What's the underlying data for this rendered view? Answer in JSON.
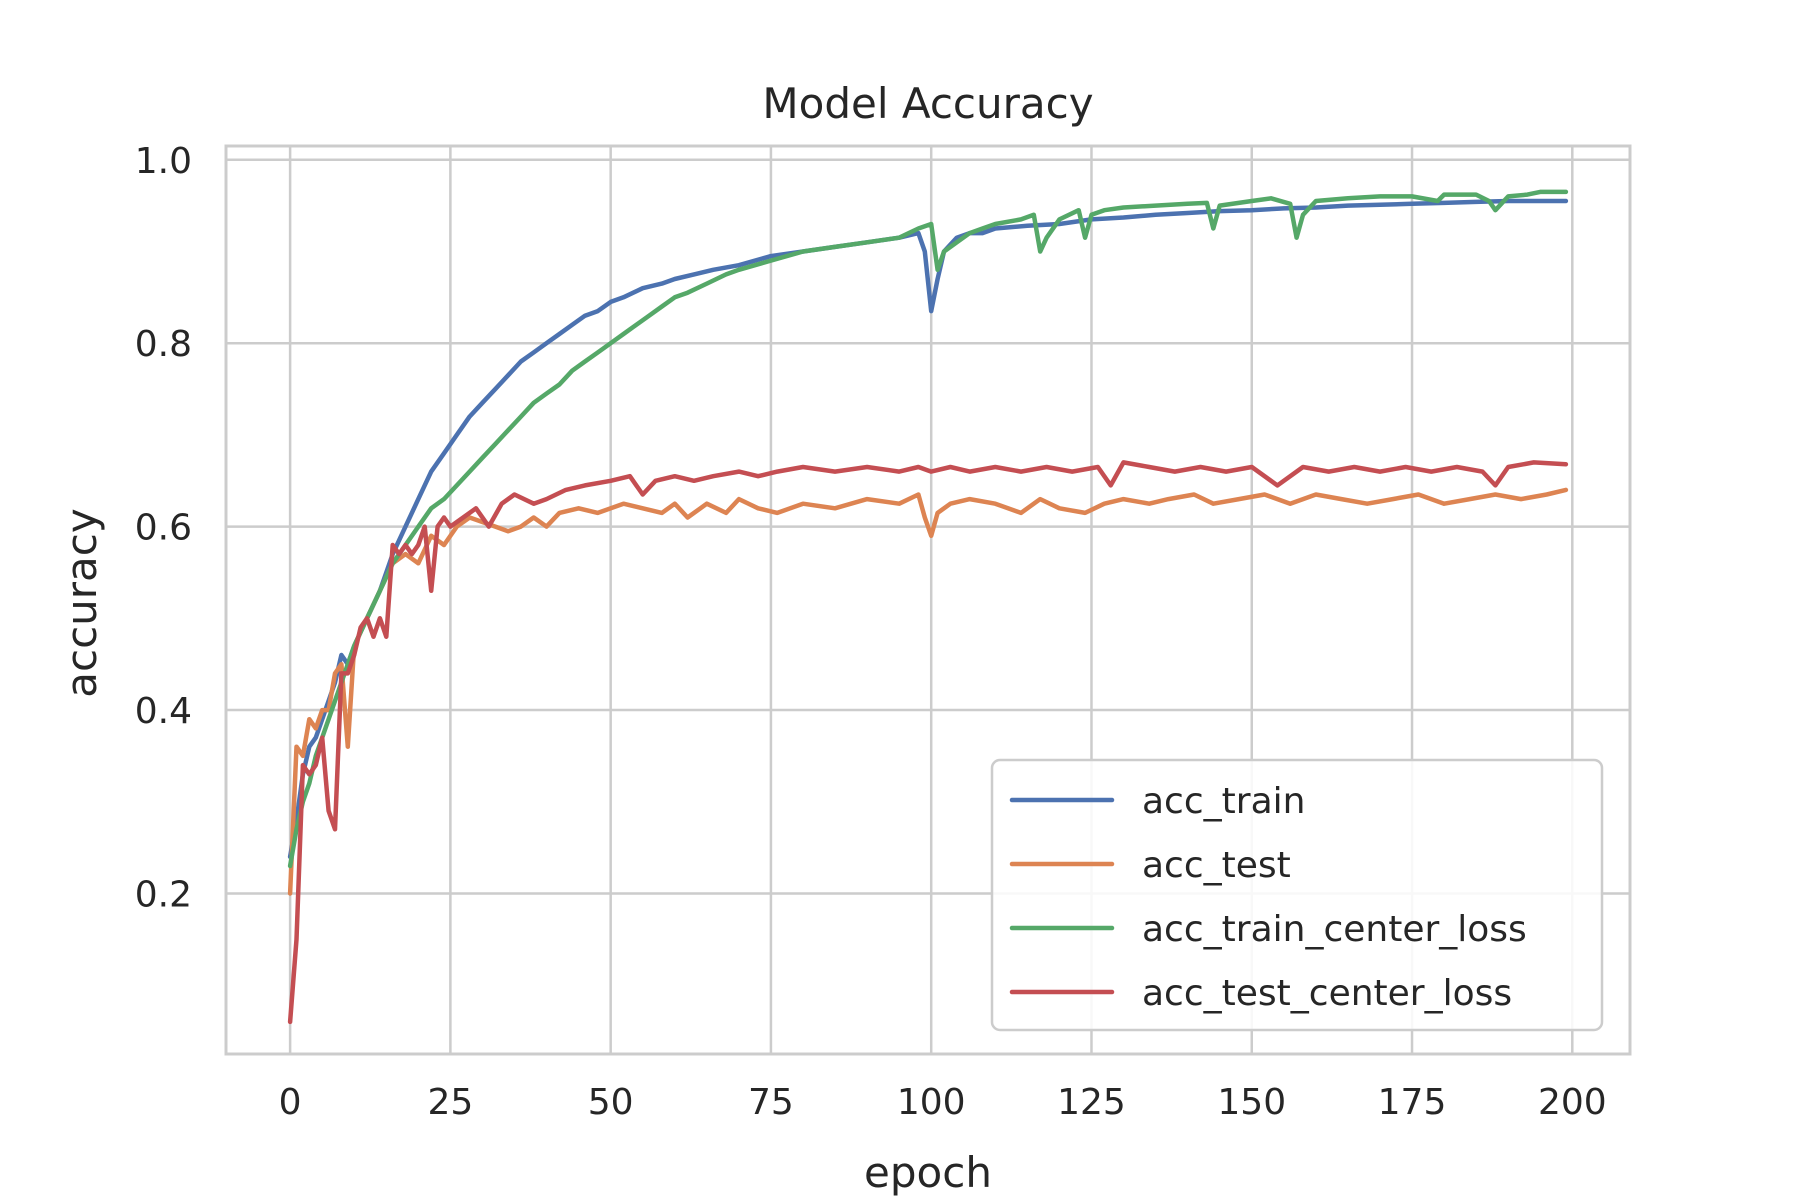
{
  "chart_data": {
    "type": "line",
    "title": "Model Accuracy",
    "xlabel": "epoch",
    "ylabel": "accuracy",
    "xlim": [
      -10,
      209
    ],
    "ylim": [
      0.025,
      1.015
    ],
    "xticks": [
      0,
      25,
      50,
      75,
      100,
      125,
      150,
      175,
      200
    ],
    "yticks": [
      0.2,
      0.4,
      0.6,
      0.8,
      1.0
    ],
    "ytick_labels": [
      "0.2",
      "0.4",
      "0.6",
      "0.8",
      "1.0"
    ],
    "grid": true,
    "legend_position": "lower-right",
    "series": [
      {
        "name": "acc_train",
        "color": "#4c72b0",
        "x": [
          0,
          1,
          2,
          3,
          4,
          5,
          6,
          7,
          8,
          9,
          10,
          12,
          14,
          16,
          18,
          20,
          22,
          24,
          26,
          28,
          30,
          32,
          34,
          36,
          38,
          40,
          42,
          44,
          46,
          48,
          50,
          52,
          55,
          58,
          60,
          63,
          66,
          70,
          75,
          80,
          85,
          90,
          95,
          98,
          99,
          100,
          101,
          102,
          104,
          106,
          108,
          110,
          115,
          120,
          125,
          130,
          135,
          140,
          145,
          150,
          155,
          160,
          165,
          170,
          175,
          180,
          185,
          190,
          195,
          199
        ],
        "y": [
          0.24,
          0.28,
          0.33,
          0.36,
          0.37,
          0.39,
          0.41,
          0.43,
          0.46,
          0.45,
          0.47,
          0.5,
          0.53,
          0.57,
          0.6,
          0.63,
          0.66,
          0.68,
          0.7,
          0.72,
          0.735,
          0.75,
          0.765,
          0.78,
          0.79,
          0.8,
          0.81,
          0.82,
          0.83,
          0.835,
          0.845,
          0.85,
          0.86,
          0.865,
          0.87,
          0.875,
          0.88,
          0.885,
          0.895,
          0.9,
          0.905,
          0.91,
          0.915,
          0.92,
          0.9,
          0.835,
          0.87,
          0.9,
          0.915,
          0.92,
          0.92,
          0.925,
          0.928,
          0.93,
          0.935,
          0.937,
          0.94,
          0.942,
          0.944,
          0.945,
          0.947,
          0.948,
          0.95,
          0.951,
          0.952,
          0.953,
          0.954,
          0.955,
          0.955,
          0.955
        ]
      },
      {
        "name": "acc_test",
        "color": "#dd8452",
        "x": [
          0,
          1,
          2,
          3,
          4,
          5,
          6,
          7,
          8,
          9,
          10,
          12,
          14,
          16,
          18,
          20,
          22,
          24,
          26,
          28,
          30,
          32,
          34,
          36,
          38,
          40,
          42,
          45,
          48,
          52,
          55,
          58,
          60,
          62,
          65,
          68,
          70,
          73,
          76,
          80,
          85,
          90,
          95,
          98,
          99,
          100,
          101,
          103,
          106,
          110,
          114,
          117,
          120,
          124,
          127,
          130,
          134,
          137,
          141,
          144,
          148,
          152,
          156,
          160,
          164,
          168,
          172,
          176,
          180,
          184,
          188,
          192,
          196,
          199
        ],
        "y": [
          0.2,
          0.36,
          0.35,
          0.39,
          0.38,
          0.4,
          0.4,
          0.44,
          0.45,
          0.36,
          0.47,
          0.5,
          0.53,
          0.56,
          0.57,
          0.56,
          0.59,
          0.58,
          0.6,
          0.61,
          0.605,
          0.6,
          0.595,
          0.6,
          0.61,
          0.6,
          0.615,
          0.62,
          0.615,
          0.625,
          0.62,
          0.615,
          0.625,
          0.61,
          0.625,
          0.615,
          0.63,
          0.62,
          0.615,
          0.625,
          0.62,
          0.63,
          0.625,
          0.635,
          0.61,
          0.59,
          0.615,
          0.625,
          0.63,
          0.625,
          0.615,
          0.63,
          0.62,
          0.615,
          0.625,
          0.63,
          0.625,
          0.63,
          0.635,
          0.625,
          0.63,
          0.635,
          0.625,
          0.635,
          0.63,
          0.625,
          0.63,
          0.635,
          0.625,
          0.63,
          0.635,
          0.63,
          0.635,
          0.64
        ]
      },
      {
        "name": "acc_train_center_loss",
        "color": "#55a868",
        "x": [
          0,
          1,
          2,
          3,
          4,
          5,
          6,
          8,
          10,
          12,
          14,
          16,
          18,
          20,
          22,
          24,
          26,
          28,
          30,
          32,
          34,
          36,
          38,
          40,
          42,
          44,
          46,
          48,
          50,
          52,
          54,
          56,
          58,
          60,
          62,
          65,
          68,
          70,
          75,
          80,
          85,
          90,
          95,
          98,
          100,
          101,
          102,
          104,
          106,
          108,
          110,
          114,
          116,
          117,
          118,
          120,
          123,
          124,
          125,
          127,
          130,
          135,
          140,
          143,
          144,
          145,
          150,
          153,
          156,
          157,
          158,
          160,
          165,
          170,
          175,
          179,
          180,
          185,
          187,
          188,
          190,
          193,
          195,
          199
        ],
        "y": [
          0.23,
          0.27,
          0.3,
          0.32,
          0.35,
          0.37,
          0.39,
          0.43,
          0.47,
          0.5,
          0.53,
          0.56,
          0.58,
          0.6,
          0.62,
          0.63,
          0.645,
          0.66,
          0.675,
          0.69,
          0.705,
          0.72,
          0.735,
          0.745,
          0.755,
          0.77,
          0.78,
          0.79,
          0.8,
          0.81,
          0.82,
          0.83,
          0.84,
          0.85,
          0.855,
          0.865,
          0.875,
          0.88,
          0.89,
          0.9,
          0.905,
          0.91,
          0.915,
          0.925,
          0.93,
          0.88,
          0.9,
          0.91,
          0.92,
          0.925,
          0.93,
          0.935,
          0.94,
          0.9,
          0.915,
          0.935,
          0.945,
          0.915,
          0.94,
          0.945,
          0.948,
          0.95,
          0.952,
          0.953,
          0.925,
          0.95,
          0.955,
          0.958,
          0.952,
          0.915,
          0.94,
          0.955,
          0.958,
          0.96,
          0.96,
          0.955,
          0.962,
          0.962,
          0.955,
          0.945,
          0.96,
          0.962,
          0.965,
          0.965
        ]
      },
      {
        "name": "acc_test_center_loss",
        "color": "#c44e52",
        "x": [
          0,
          1,
          2,
          3,
          4,
          5,
          6,
          7,
          8,
          9,
          10,
          11,
          12,
          13,
          14,
          15,
          16,
          17,
          18,
          19,
          20,
          21,
          22,
          23,
          24,
          25,
          27,
          29,
          31,
          33,
          35,
          38,
          40,
          43,
          46,
          50,
          53,
          55,
          57,
          60,
          63,
          66,
          70,
          73,
          76,
          80,
          85,
          90,
          95,
          98,
          100,
          103,
          106,
          110,
          114,
          118,
          122,
          126,
          128,
          130,
          134,
          138,
          142,
          146,
          150,
          154,
          158,
          162,
          166,
          170,
          174,
          178,
          182,
          186,
          188,
          190,
          194,
          199
        ],
        "y": [
          0.06,
          0.15,
          0.34,
          0.33,
          0.34,
          0.37,
          0.29,
          0.27,
          0.44,
          0.44,
          0.46,
          0.49,
          0.5,
          0.48,
          0.5,
          0.48,
          0.58,
          0.57,
          0.58,
          0.57,
          0.58,
          0.6,
          0.53,
          0.6,
          0.61,
          0.6,
          0.61,
          0.62,
          0.6,
          0.625,
          0.635,
          0.625,
          0.63,
          0.64,
          0.645,
          0.65,
          0.655,
          0.635,
          0.65,
          0.655,
          0.65,
          0.655,
          0.66,
          0.655,
          0.66,
          0.665,
          0.66,
          0.665,
          0.66,
          0.665,
          0.66,
          0.665,
          0.66,
          0.665,
          0.66,
          0.665,
          0.66,
          0.665,
          0.645,
          0.67,
          0.665,
          0.66,
          0.665,
          0.66,
          0.665,
          0.645,
          0.665,
          0.66,
          0.665,
          0.66,
          0.665,
          0.66,
          0.665,
          0.66,
          0.645,
          0.665,
          0.67,
          0.668
        ]
      }
    ]
  }
}
